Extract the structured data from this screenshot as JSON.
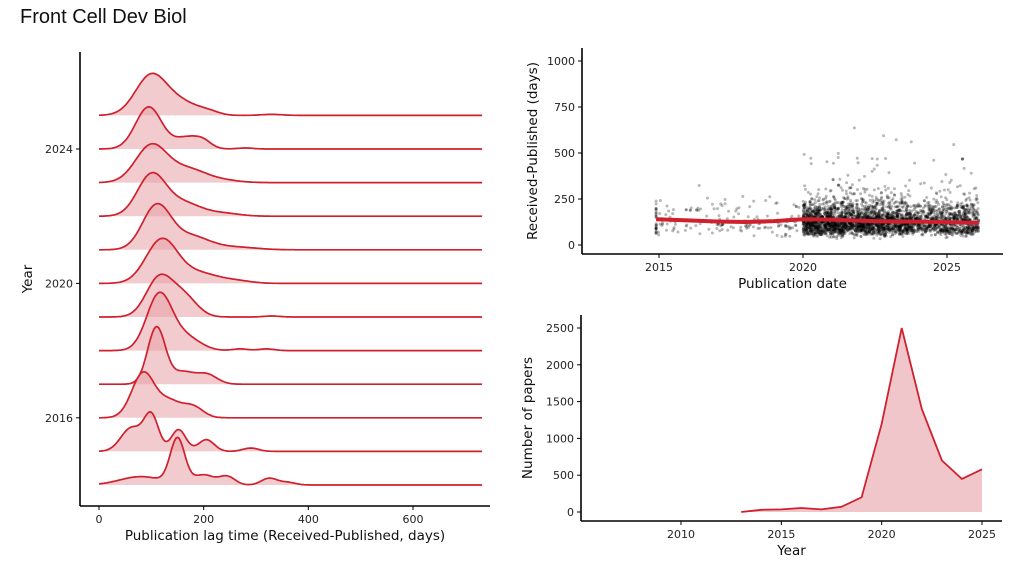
{
  "title": "Front Cell Dev Biol",
  "colors": {
    "line": "#d0202e",
    "fill": "#e8a0a6",
    "point": "#000000"
  },
  "chart_data": [
    {
      "type": "ridgeline",
      "xlabel": "Publication lag time (Received-Published, days)",
      "ylabel": "Year",
      "xlim": [
        -35,
        735
      ],
      "xticks": [
        0,
        200,
        400,
        600
      ],
      "yticks": [
        2016,
        2020,
        2024
      ],
      "ridges": [
        {
          "year": 2014,
          "components": [
            [
              80,
              40,
              0.25
            ],
            [
              150,
              14,
              1.35
            ],
            [
              200,
              20,
              0.3
            ],
            [
              245,
              15,
              0.25
            ],
            [
              325,
              15,
              0.2
            ],
            [
              360,
              15,
              0.08
            ]
          ]
        },
        {
          "year": 2015,
          "components": [
            [
              62,
              20,
              0.7
            ],
            [
              100,
              14,
              1.05
            ],
            [
              152,
              14,
              0.65
            ],
            [
              205,
              15,
              0.35
            ],
            [
              290,
              15,
              0.1
            ]
          ]
        },
        {
          "year": 2016,
          "components": [
            [
              85,
              22,
              1.35
            ],
            [
              135,
              20,
              0.45
            ],
            [
              178,
              20,
              0.35
            ]
          ]
        },
        {
          "year": 2017,
          "components": [
            [
              110,
              17,
              1.7
            ],
            [
              160,
              20,
              0.35
            ],
            [
              205,
              20,
              0.3
            ]
          ]
        },
        {
          "year": 2018,
          "components": [
            [
              115,
              24,
              1.65
            ],
            [
              165,
              28,
              0.4
            ],
            [
              270,
              15,
              0.05
            ],
            [
              320,
              15,
              0.05
            ]
          ]
        },
        {
          "year": 2019,
          "components": [
            [
              115,
              25,
              1.15
            ],
            [
              162,
              25,
              0.6
            ],
            [
              330,
              15,
              0.03
            ]
          ]
        },
        {
          "year": 2020,
          "components": [
            [
              120,
              30,
              1.3
            ],
            [
              190,
              35,
              0.3
            ],
            [
              260,
              30,
              0.08
            ]
          ]
        },
        {
          "year": 2021,
          "components": [
            [
              110,
              27,
              1.3
            ],
            [
              175,
              35,
              0.4
            ],
            [
              260,
              40,
              0.08
            ]
          ]
        },
        {
          "year": 2022,
          "components": [
            [
              100,
              27,
              1.2
            ],
            [
              160,
              35,
              0.4
            ],
            [
              240,
              30,
              0.08
            ]
          ]
        },
        {
          "year": 2023,
          "components": [
            [
              100,
              30,
              1.1
            ],
            [
              170,
              35,
              0.4
            ],
            [
              240,
              30,
              0.06
            ]
          ]
        },
        {
          "year": 2024,
          "components": [
            [
              95,
              25,
              1.25
            ],
            [
              170,
              25,
              0.35
            ],
            [
              200,
              15,
              0.15
            ],
            [
              280,
              15,
              0.03
            ]
          ]
        },
        {
          "year": 2025,
          "components": [
            [
              100,
              30,
              1.2
            ],
            [
              160,
              30,
              0.35
            ],
            [
              210,
              20,
              0.1
            ],
            [
              330,
              20,
              0.03
            ]
          ]
        }
      ]
    },
    {
      "type": "scatter",
      "xlabel": "Publication date",
      "ylabel": "Received-Published (days)",
      "xlim": [
        2012.3,
        2026.9
      ],
      "ylim": [
        -30,
        1030
      ],
      "xticks": [
        2015,
        2020,
        2025
      ],
      "yticks": [
        0,
        250,
        500,
        750,
        1000
      ],
      "point_count_approx": 7000,
      "points_median_days": 125,
      "smooth": {
        "x": [
          2014.9,
          2016,
          2017,
          2018,
          2019,
          2020,
          2021,
          2022,
          2023,
          2024,
          2025,
          2026.1
        ],
        "y": [
          140,
          134,
          128,
          125,
          130,
          140,
          138,
          132,
          128,
          127,
          124,
          120
        ]
      }
    },
    {
      "type": "area",
      "xlabel": "Year",
      "ylabel": "Number of papers",
      "xlim": [
        2005.3,
        2026.2
      ],
      "ylim": [
        -60,
        2600
      ],
      "xticks": [
        2010,
        2015,
        2020,
        2025
      ],
      "yticks": [
        0,
        500,
        1000,
        1500,
        2000,
        2500
      ],
      "x": [
        2013,
        2014,
        2015,
        2016,
        2017,
        2018,
        2019,
        2020,
        2021,
        2022,
        2023,
        2024,
        2025
      ],
      "y": [
        0,
        30,
        35,
        55,
        35,
        70,
        200,
        1200,
        2500,
        1400,
        700,
        450,
        580
      ]
    }
  ]
}
